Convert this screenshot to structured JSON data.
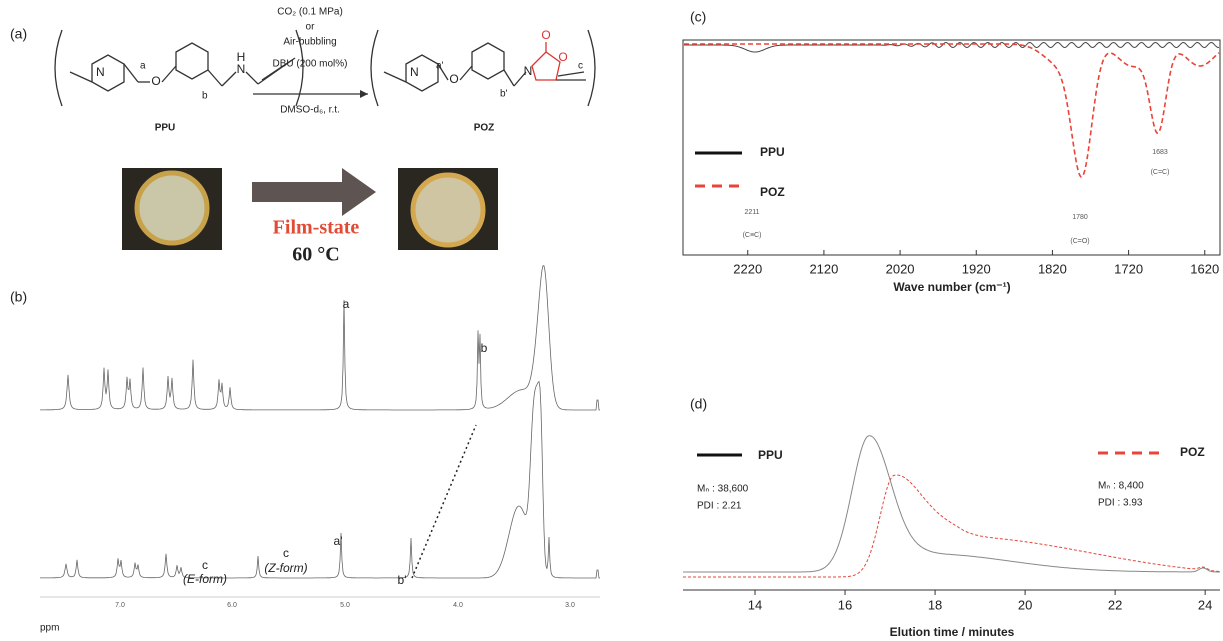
{
  "panels": {
    "a": {
      "label": "(a)",
      "ppu_a": "a",
      "ppu_b": "b",
      "ppu_n": "N",
      "ppu_nh": "N",
      "ppu_h": "H",
      "ppu_o": "O",
      "ppu_name": "PPU",
      "conditions": [
        "CO₂ (0.1 MPa)",
        "or",
        "Air-bubbling",
        "DBU (200 mol%)",
        "DMSO-d₆, r.t."
      ],
      "poz_a": "a'",
      "poz_b": "b'",
      "poz_c": "c",
      "poz_n": "N",
      "poz_ring_n": "N",
      "poz_o": "O",
      "poz_ring_o": "O",
      "poz_co": "O",
      "poz_name": "POZ",
      "film_state": "Film-state",
      "temperature": "60 °C"
    },
    "b": {
      "label": "(b)",
      "peak_a": "a",
      "peak_b": "b",
      "peak_a2": "a'",
      "peak_b2": "b'",
      "peak_c_e": "c",
      "peak_c_e_form": "(E-form)",
      "peak_c_z": "c",
      "peak_c_z_form": "(Z-form)",
      "axis_unit": "ppm",
      "ticks": [
        "7.0",
        "6.0",
        "5.0",
        "4.0",
        "3.0"
      ]
    },
    "c": {
      "label": "(c)",
      "xlim": [
        2305,
        1600
      ],
      "xticks": [
        2220,
        2120,
        2020,
        1920,
        1820,
        1720,
        1620
      ],
      "x_label": "Wave number (cm⁻¹)",
      "legend": [
        "PPU",
        "POZ"
      ],
      "annotations": [
        "2211",
        "(C≡C)",
        "1780",
        "(C=O)",
        "1683",
        "(C=C)"
      ]
    },
    "d": {
      "label": "(d)",
      "xlim": [
        12.4,
        24.33
      ],
      "xticks": [
        14,
        16,
        18,
        20,
        22,
        24
      ],
      "x_label": "Elution time / minutes",
      "legend": [
        "PPU",
        "POZ"
      ],
      "ppu_mn": "Mₙ : 38,600",
      "ppu_pdi": "PDI : 2.21",
      "poz_mn": "Mₙ : 8,400",
      "poz_pdi": "PDI : 3.93"
    }
  }
}
